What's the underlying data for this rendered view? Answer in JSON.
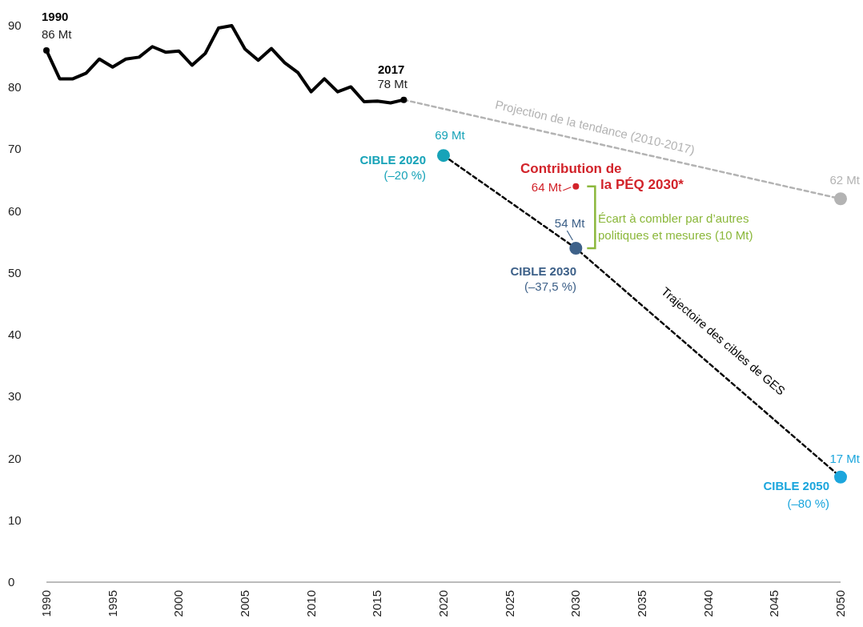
{
  "chart_data": {
    "type": "line",
    "xlim": [
      1990,
      2050
    ],
    "xticks": [
      1990,
      1995,
      2000,
      2005,
      2010,
      2015,
      2020,
      2025,
      2030,
      2035,
      2040,
      2045,
      2050
    ],
    "ylim": [
      0,
      90
    ],
    "yticks": [
      0,
      10,
      20,
      30,
      40,
      50,
      60,
      70,
      80,
      90
    ],
    "grid": false,
    "series": [
      {
        "color": "#000000",
        "line_style": "solid",
        "x": [
          1990,
          1991,
          1992,
          1993,
          1994,
          1995,
          1996,
          1997,
          1998,
          1999,
          2000,
          2001,
          2002,
          2003,
          2004,
          2005,
          2006,
          2007,
          2008,
          2009,
          2010,
          2011,
          2012,
          2013,
          2014,
          2015,
          2016,
          2017
        ],
        "values": [
          86,
          81.4,
          81.4,
          82.3,
          84.6,
          83.3,
          84.6,
          84.9,
          86.6,
          85.7,
          85.9,
          83.6,
          85.5,
          89.6,
          90,
          86.2,
          84.4,
          86.3,
          84.0,
          82.4,
          79.3,
          81.4,
          79.3,
          80.1,
          77.7,
          77.8,
          77.5,
          78
        ]
      },
      {
        "color": "#b3b3b3",
        "line_style": "dashed",
        "x": [
          2017,
          2050
        ],
        "values": [
          78,
          62
        ]
      },
      {
        "color": "#000000",
        "line_style": "dashed",
        "x": [
          2020,
          2030,
          2050
        ],
        "values": [
          69,
          54,
          17
        ]
      },
      {
        "type": "scatter",
        "marker": "circle",
        "x": [
          2020,
          2030,
          2050
        ],
        "values": [
          69,
          54,
          17
        ],
        "colors": [
          "#17a3b8",
          "#3e6189",
          "#1ca6dd"
        ],
        "value_labels": [
          "69 Mt",
          "54 Mt",
          "17 Mt"
        ]
      },
      {
        "type": "scatter",
        "marker": "circle",
        "color": "#b3b3b3",
        "x": [
          2050
        ],
        "values": [
          62
        ],
        "value_labels": [
          "62 Mt"
        ]
      },
      {
        "type": "scatter",
        "marker": "circle",
        "color": "#d2232a",
        "x": [
          2030
        ],
        "values": [
          64
        ],
        "value_labels": [
          "64 Mt"
        ]
      },
      {
        "type": "scatter",
        "marker": "circle",
        "color": "#000000",
        "x": [
          1990,
          2017
        ],
        "values": [
          86,
          78
        ],
        "value_labels": [
          "86 Mt",
          "78 Mt"
        ]
      }
    ],
    "annotations": [
      "1990",
      "2017",
      "CIBLE 2020",
      "(–20 %)",
      "CIBLE 2030",
      "(–37,5 %)",
      "CIBLE 2050",
      "(–80 %)",
      "Contribution de",
      "la PÉQ 2030*",
      "Écart à combler par d’autres",
      "politiques et mesures (10 Mt)",
      "Projection de la tendance (2010-2017)",
      "Trajectoire des cibles de GES"
    ]
  }
}
